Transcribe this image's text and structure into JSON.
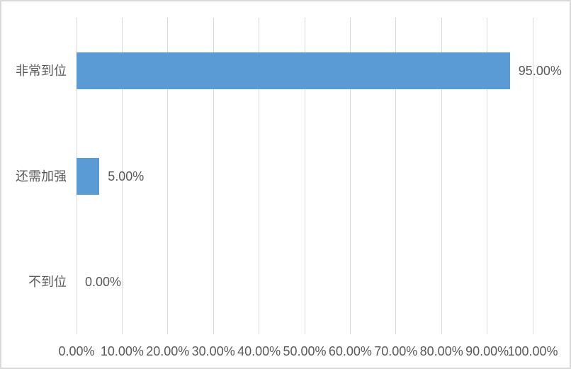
{
  "chart_data": {
    "type": "bar",
    "orientation": "horizontal",
    "title": "",
    "categories": [
      "非常到位",
      "还需加强",
      "不到位"
    ],
    "values": [
      95,
      5,
      0
    ],
    "value_labels": [
      "95.00%",
      "5.00%",
      "0.00%"
    ],
    "x_ticks": [
      "0.00%",
      "10.00%",
      "20.00%",
      "30.00%",
      "40.00%",
      "50.00%",
      "60.00%",
      "70.00%",
      "80.00%",
      "90.00%",
      "100.00%"
    ],
    "x_tick_values": [
      0,
      10,
      20,
      30,
      40,
      50,
      60,
      70,
      80,
      90,
      100
    ],
    "xlim": [
      0,
      100
    ],
    "grid": "vertical-major",
    "legend": "none",
    "colors": {
      "bar": "#5B9BD5",
      "text": "#595959",
      "gridline": "#D9D9D9",
      "border": "#D9D9D9",
      "background": "#FFFFFF"
    }
  }
}
